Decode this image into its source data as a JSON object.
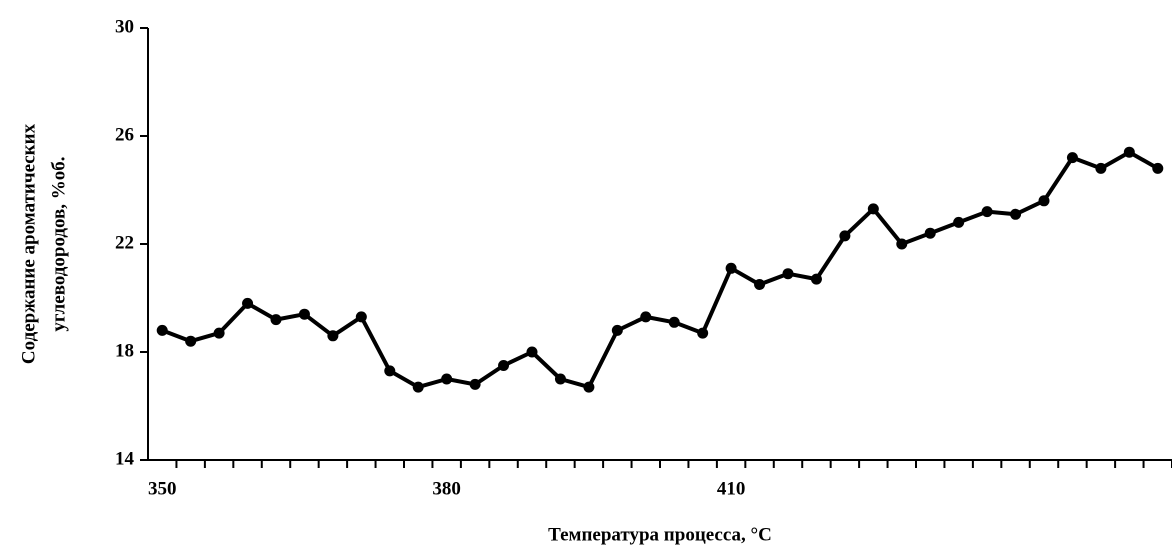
{
  "chart_data": {
    "type": "line",
    "x_label": "Температура процесса, °С",
    "y_label": [
      "Содержание ароматических",
      "углеводородов, %об."
    ],
    "categories": [
      "350",
      null,
      null,
      null,
      null,
      null,
      null,
      null,
      null,
      null,
      "380",
      null,
      null,
      null,
      null,
      null,
      null,
      null,
      null,
      null,
      "410",
      null,
      null,
      null,
      null,
      null,
      null,
      null,
      null,
      null,
      null,
      null,
      null,
      null,
      null,
      null
    ],
    "series": [
      {
        "name": null,
        "color": "#000000",
        "values": [
          18.8,
          18.4,
          18.7,
          19.8,
          19.2,
          19.4,
          18.6,
          19.3,
          17.3,
          16.7,
          17.0,
          16.8,
          17.5,
          18.0,
          17.0,
          16.7,
          18.8,
          19.3,
          19.1,
          18.7,
          21.1,
          20.5,
          20.9,
          20.7,
          22.3,
          23.3,
          22.0,
          22.4,
          22.8,
          23.2,
          23.1,
          23.6,
          25.2,
          24.8,
          25.4,
          24.8
        ]
      }
    ],
    "ylim": [
      14,
      30
    ],
    "yticks": [
      14,
      18,
      22,
      26,
      30
    ],
    "grid": false
  }
}
